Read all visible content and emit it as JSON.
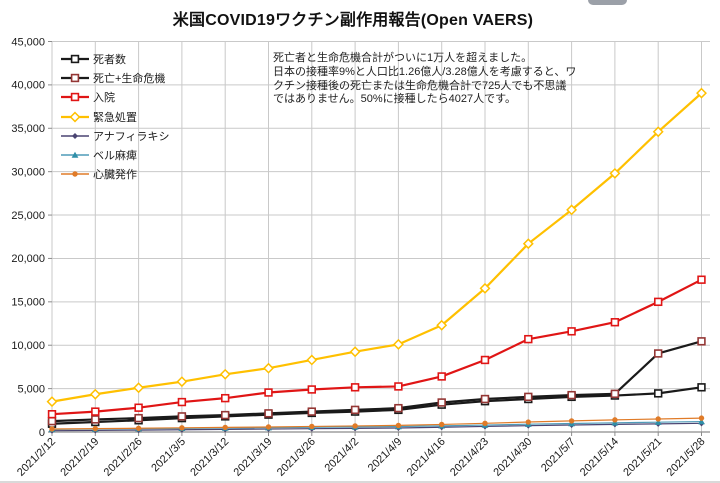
{
  "page": {
    "title": "米国COVID19ワクチン副作用報告(Open VAERS)"
  },
  "annotation": {
    "lines": [
      "死亡者と生命危機合計がついに1万人を超えました。",
      "日本の接種率9%と人口比1.26億人/3.28億人を考慮すると、ワ",
      "クチン接種後の死亡または生命危機合計で725人でも不思議",
      "ではありません。50%に接種したら4027人です。"
    ]
  },
  "chart_data": {
    "type": "line",
    "title": "米国COVID19ワクチン副作用報告(Open VAERS)",
    "x": [
      "2021/2/12",
      "2021/2/19",
      "2021/2/26",
      "2021/3/5",
      "2021/3/12",
      "2021/3/19",
      "2021/3/26",
      "2021/4/2",
      "2021/4/9",
      "2021/4/16",
      "2021/4/23",
      "2021/4/30",
      "2021/5/7",
      "2021/5/14",
      "2021/5/21",
      "2021/5/28"
    ],
    "xlabel": "",
    "ylabel": "",
    "ylim": [
      0,
      45000
    ],
    "ytick_step": 5000,
    "grid": true,
    "legend_position": "upper-left-inside",
    "colors": {
      "grid": "#c9c9c9",
      "axis": "#8c8c8c",
      "text": "#1a1a1a"
    },
    "series": [
      {
        "name": "死者数",
        "key": "deaths",
        "color": "#1a1a1a",
        "marker": "square-open",
        "marker_color": "#1a1a1a",
        "line_width": 2.2,
        "values": [
          950,
          1150,
          1350,
          1600,
          1800,
          2000,
          2200,
          2350,
          2550,
          3150,
          3550,
          3800,
          4050,
          4200,
          4450,
          5150
        ]
      },
      {
        "name": "死亡+生命危機",
        "key": "death-life-risk",
        "color": "#1a1a1a",
        "marker": "square-open",
        "marker_color": "#943634",
        "line_width": 2.2,
        "values": [
          1250,
          1450,
          1600,
          1800,
          1950,
          2150,
          2350,
          2550,
          2750,
          3400,
          3800,
          4050,
          4250,
          4400,
          9050,
          10450
        ]
      },
      {
        "name": "入院",
        "key": "hospitalization",
        "color": "#e01515",
        "marker": "square-open",
        "marker_color": "#e01515",
        "line_width": 2.2,
        "values": [
          2050,
          2350,
          2800,
          3450,
          3900,
          4550,
          4900,
          5150,
          5250,
          6400,
          8300,
          10700,
          11600,
          12650,
          15000,
          17550
        ]
      },
      {
        "name": "緊急処置",
        "key": "emergency-treatment",
        "color": "#ffc000",
        "marker": "diamond-open",
        "marker_color": "#ffc000",
        "line_width": 2.2,
        "values": [
          3500,
          4350,
          5100,
          5800,
          6650,
          7350,
          8300,
          9250,
          10100,
          12300,
          16550,
          21700,
          25600,
          29800,
          34600,
          39050
        ]
      },
      {
        "name": "アナフィラキシ",
        "key": "anaphylaxis",
        "color": "#4a4472",
        "marker": "diamond-filled",
        "marker_color": "#4a4472",
        "line_width": 1.2,
        "values": [
          150,
          180,
          220,
          260,
          300,
          340,
          380,
          420,
          460,
          550,
          640,
          730,
          810,
          880,
          940,
          1000
        ]
      },
      {
        "name": "ベル麻痺",
        "key": "bells-palsy",
        "color": "#4f9bb8",
        "marker": "triangle-filled",
        "marker_color": "#2f8fa8",
        "line_width": 1.2,
        "values": [
          300,
          340,
          380,
          420,
          460,
          500,
          545,
          590,
          630,
          710,
          800,
          900,
          980,
          1060,
          1130,
          1200
        ]
      },
      {
        "name": "心臓発作",
        "key": "heart-attack",
        "color": "#e07b28",
        "marker": "circle-filled",
        "marker_color": "#e07b28",
        "line_width": 1.2,
        "values": [
          350,
          390,
          430,
          480,
          530,
          580,
          640,
          700,
          760,
          870,
          1000,
          1150,
          1280,
          1400,
          1500,
          1600
        ]
      }
    ]
  }
}
